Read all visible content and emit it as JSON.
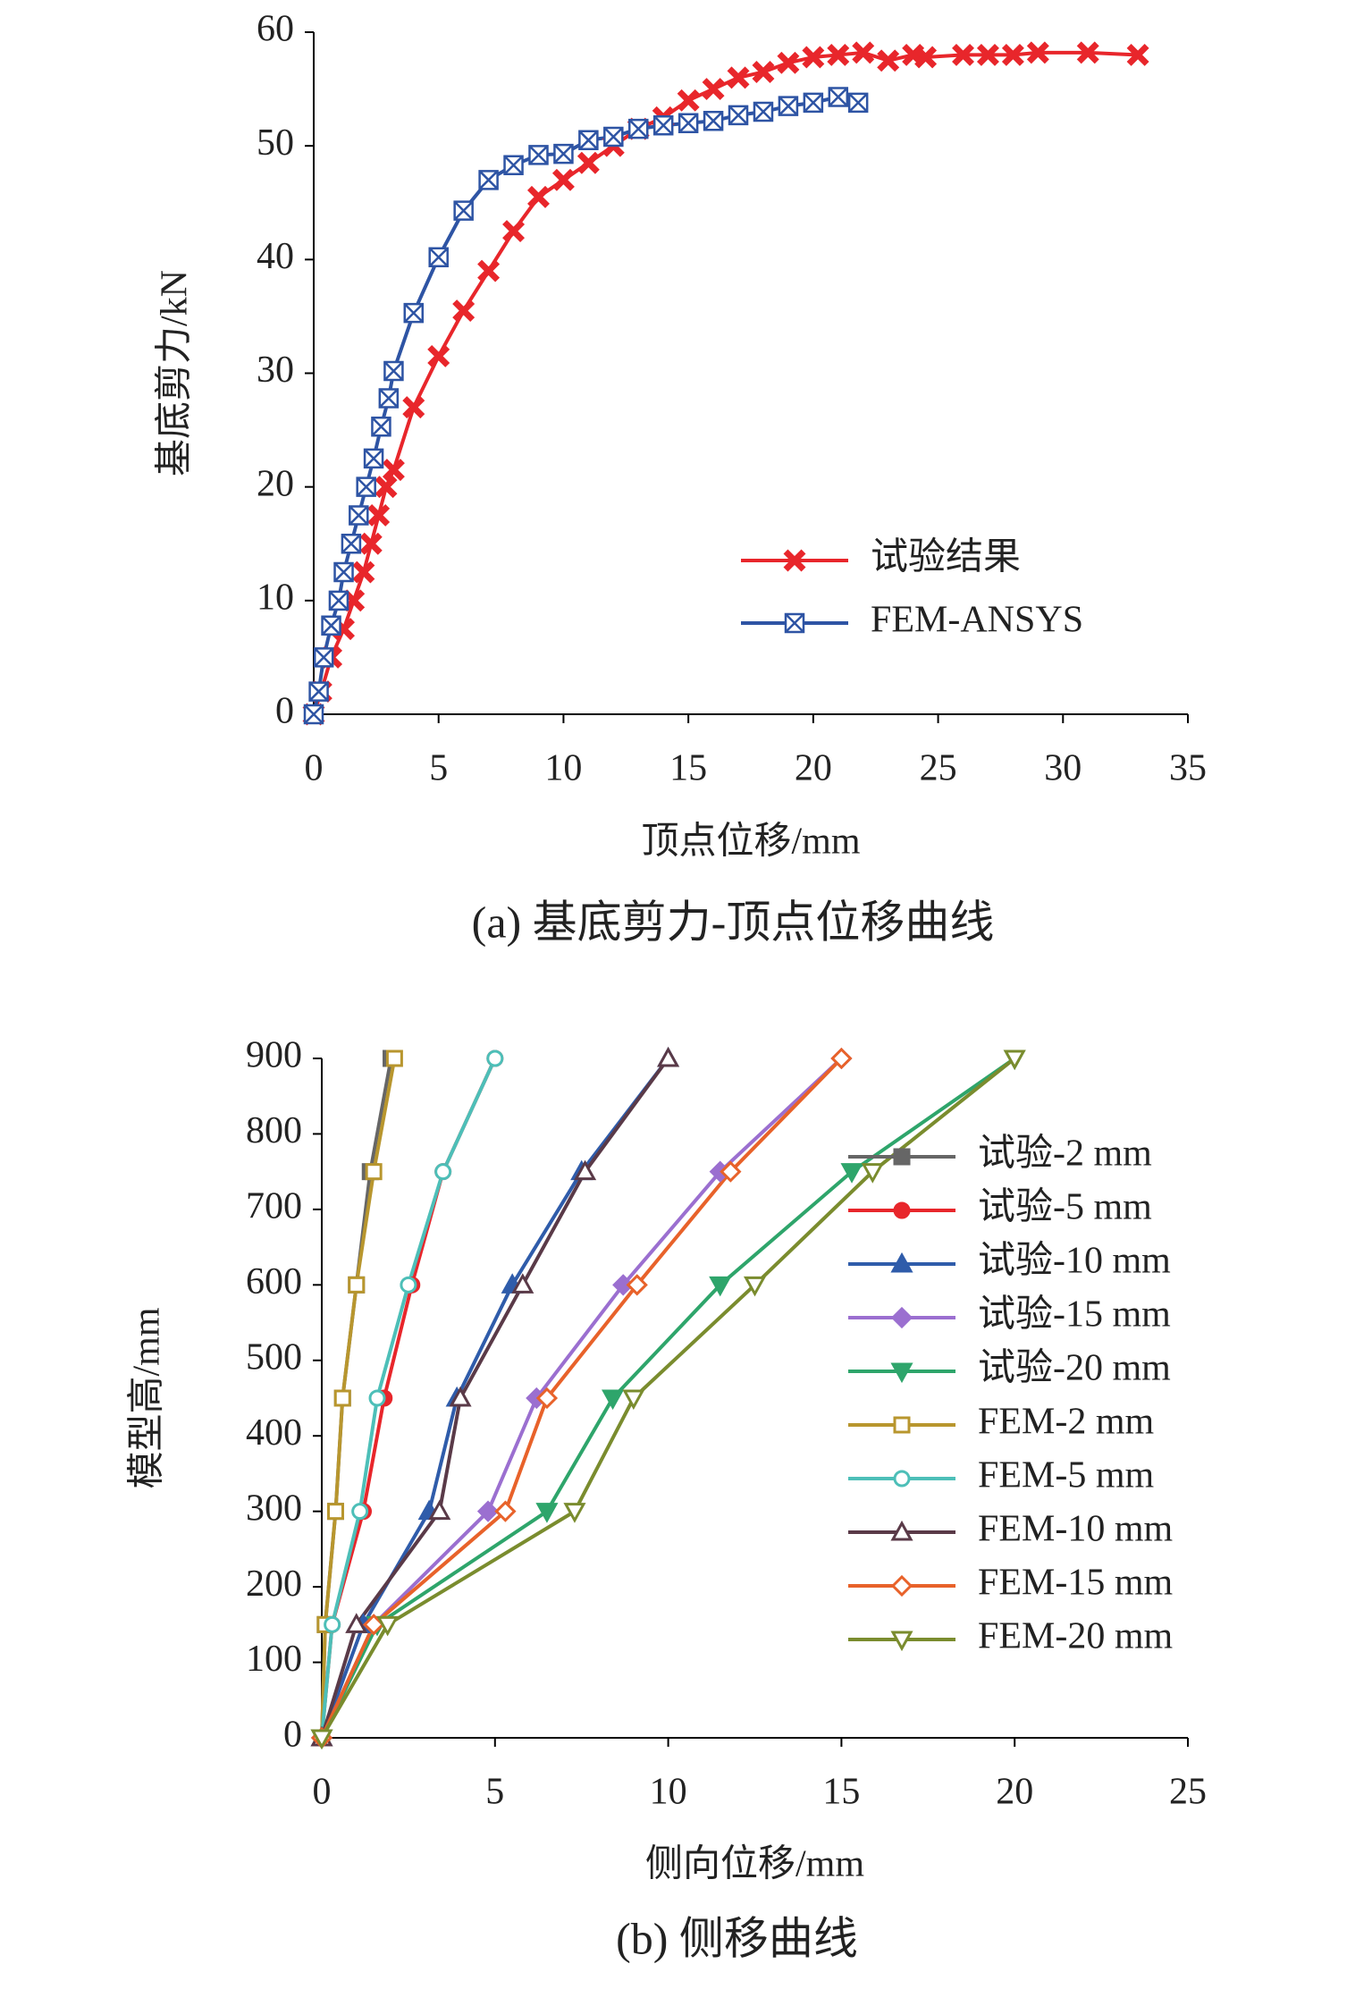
{
  "chart_data": [
    {
      "type": "line",
      "x_label": "顶点位移/mm",
      "y_label": "基底剪力/kN",
      "caption": "(a) 基底剪力-顶点位移曲线",
      "xlim": [
        0,
        35
      ],
      "xticks": [
        0,
        5,
        10,
        15,
        20,
        25,
        30,
        35
      ],
      "ylim": [
        0,
        60
      ],
      "yticks": [
        0,
        10,
        20,
        30,
        40,
        50,
        60
      ],
      "legend": "lower right",
      "series": [
        {
          "name": "试验结果",
          "color": "#e8262b",
          "marker": "x",
          "filled": false,
          "x": [
            0,
            0.3,
            0.7,
            1.2,
            1.6,
            2,
            2.3,
            2.6,
            2.9,
            3.2,
            4,
            5,
            6,
            7,
            8,
            9,
            10,
            11,
            12,
            13,
            14,
            15,
            16,
            17,
            18,
            19,
            20,
            21,
            22,
            23,
            24,
            24.5,
            26,
            27,
            28,
            29,
            31,
            33
          ],
          "values": [
            0,
            2,
            5,
            7.5,
            10,
            12.5,
            15,
            17.5,
            20,
            21.5,
            27,
            31.5,
            35.5,
            39,
            42.5,
            45.5,
            47,
            48.5,
            50,
            51.5,
            52.5,
            54,
            55,
            56,
            56.5,
            57.3,
            57.8,
            58,
            58.2,
            57.5,
            58,
            57.8,
            58,
            58,
            58,
            58.2,
            58.2,
            58
          ]
        },
        {
          "name": "FEM-ANSYS",
          "color": "#2e54a4",
          "marker": "square-x",
          "filled": false,
          "x": [
            0,
            0.2,
            0.4,
            0.7,
            1,
            1.2,
            1.5,
            1.8,
            2.1,
            2.4,
            2.7,
            3,
            3.2,
            4,
            5,
            6,
            7,
            8,
            9,
            10,
            11,
            12,
            13,
            14,
            15,
            16,
            17,
            18,
            19,
            20,
            21,
            21.8
          ],
          "values": [
            0,
            2,
            5,
            7.8,
            10,
            12.5,
            15,
            17.5,
            20,
            22.5,
            25.3,
            27.8,
            30.2,
            35.3,
            40.2,
            44.3,
            47,
            48.3,
            49.2,
            49.3,
            50.5,
            50.8,
            51.5,
            51.8,
            52,
            52.2,
            52.7,
            53,
            53.5,
            53.8,
            54.3,
            53.8
          ]
        }
      ]
    },
    {
      "type": "line",
      "x_label": "侧向位移/mm",
      "y_label": "模型高/mm",
      "caption": "(b) 侧移曲线",
      "xlim": [
        0,
        25
      ],
      "xticks": [
        0,
        5,
        10,
        15,
        20,
        25
      ],
      "ylim": [
        0,
        900
      ],
      "yticks": [
        0,
        100,
        200,
        300,
        400,
        500,
        600,
        700,
        800,
        900
      ],
      "legend": "right",
      "series": [
        {
          "name": "试验-2 mm",
          "color": "#666666",
          "marker": "square",
          "filled": true,
          "x": [
            0,
            0.1,
            0.4,
            0.6,
            1.0,
            1.4,
            2.0
          ],
          "values": [
            0,
            150,
            300,
            450,
            600,
            750,
            900
          ]
        },
        {
          "name": "试验-5 mm",
          "color": "#e8262b",
          "marker": "circle",
          "filled": true,
          "x": [
            0,
            0.3,
            1.2,
            1.8,
            2.6,
            3.5,
            5.0
          ],
          "values": [
            0,
            150,
            300,
            450,
            600,
            750,
            900
          ]
        },
        {
          "name": "试验-10 mm",
          "color": "#2f5caa",
          "marker": "triangle",
          "filled": true,
          "x": [
            0,
            1.2,
            3.1,
            3.9,
            5.5,
            7.5,
            10.0
          ],
          "values": [
            0,
            150,
            300,
            450,
            600,
            750,
            900
          ]
        },
        {
          "name": "试验-15 mm",
          "color": "#9b6fd0",
          "marker": "diamond",
          "filled": true,
          "x": [
            0,
            1.5,
            4.8,
            6.2,
            8.7,
            11.5,
            15.0
          ],
          "values": [
            0,
            150,
            300,
            450,
            600,
            750,
            900
          ]
        },
        {
          "name": "试验-20 mm",
          "color": "#2ea56b",
          "marker": "triangle-down",
          "filled": true,
          "x": [
            0,
            1.6,
            6.5,
            8.4,
            11.5,
            15.3,
            20.0
          ],
          "values": [
            0,
            150,
            300,
            450,
            600,
            750,
            900
          ]
        },
        {
          "name": "FEM-2 mm",
          "color": "#b8962e",
          "marker": "square",
          "filled": false,
          "x": [
            0,
            0.1,
            0.4,
            0.6,
            1.0,
            1.5,
            2.1
          ],
          "values": [
            0,
            150,
            300,
            450,
            600,
            750,
            900
          ]
        },
        {
          "name": "FEM-5 mm",
          "color": "#4dbfb8",
          "marker": "circle",
          "filled": false,
          "x": [
            0,
            0.3,
            1.1,
            1.6,
            2.5,
            3.5,
            5.0
          ],
          "values": [
            0,
            150,
            300,
            450,
            600,
            750,
            900
          ]
        },
        {
          "name": "FEM-10 mm",
          "color": "#5a3a48",
          "marker": "triangle",
          "filled": false,
          "x": [
            0,
            1.0,
            3.4,
            4.0,
            5.8,
            7.6,
            10.0
          ],
          "values": [
            0,
            150,
            300,
            450,
            600,
            750,
            900
          ]
        },
        {
          "name": "FEM-15 mm",
          "color": "#e8622a",
          "marker": "diamond",
          "filled": false,
          "x": [
            0,
            1.5,
            5.3,
            6.5,
            9.1,
            11.8,
            15.0
          ],
          "values": [
            0,
            150,
            300,
            450,
            600,
            750,
            900
          ]
        },
        {
          "name": "FEM-20 mm",
          "color": "#7a8c2e",
          "marker": "triangle-down",
          "filled": false,
          "x": [
            0,
            1.9,
            7.3,
            9.0,
            12.5,
            15.9,
            20.0
          ],
          "values": [
            0,
            150,
            300,
            450,
            600,
            750,
            900
          ]
        }
      ]
    }
  ]
}
